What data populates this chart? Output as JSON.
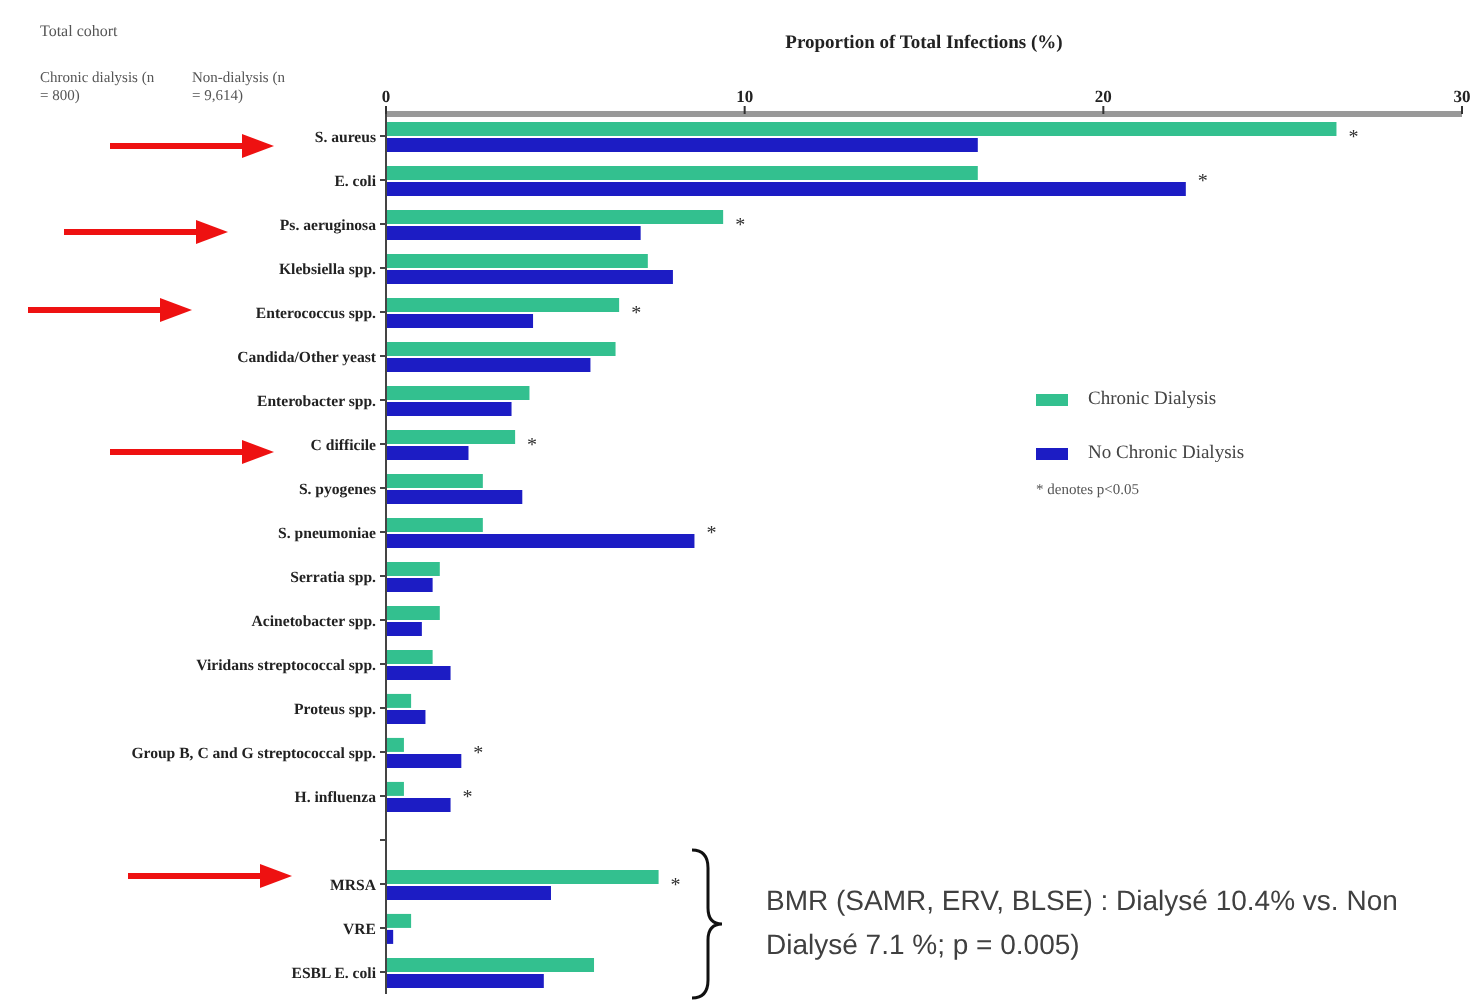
{
  "chart_data": {
    "type": "bar",
    "orientation": "horizontal",
    "xlabel": "Proportion of Total Infections (%)",
    "categories": [
      "S. aureus",
      "E. coli",
      "Ps. aeruginosa",
      "Klebsiella spp.",
      "Enterococcus spp.",
      "Candida/Other yeast",
      "Enterobacter spp.",
      "C difficile",
      "S. pyogenes",
      "S. pneumoniae",
      "Serratia spp.",
      "Acinetobacter spp.",
      "Viridans streptococcal spp.",
      "Proteus spp.",
      "Group B, C and G streptococcal spp.",
      "H. influenza",
      null,
      "MRSA",
      "VRE",
      "ESBL E. coli"
    ],
    "series": [
      {
        "name": "Chronic Dialysis",
        "color": "#33c08f",
        "values": [
          26.5,
          16.5,
          9.4,
          7.3,
          6.5,
          6.4,
          4.0,
          3.6,
          2.7,
          2.7,
          1.5,
          1.5,
          1.3,
          0.7,
          0.5,
          0.5,
          null,
          7.6,
          0.7,
          5.8
        ]
      },
      {
        "name": "No Chronic Dialysis",
        "color": "#1c1cc4",
        "values": [
          16.5,
          22.3,
          7.1,
          8.0,
          4.1,
          5.7,
          3.5,
          2.3,
          3.8,
          8.6,
          1.3,
          1.0,
          1.8,
          1.1,
          2.1,
          1.8,
          null,
          4.6,
          0.2,
          4.4
        ]
      }
    ],
    "xlim": [
      0,
      30
    ],
    "xticks": [
      0,
      10,
      20,
      30
    ],
    "legend": "right",
    "annotations": [
      {
        "text": "*",
        "x": 26.5,
        "y": "S. aureus"
      },
      {
        "text": "*",
        "x": 22.3,
        "y": "E. coli"
      },
      {
        "text": "*",
        "x": 9.4,
        "y": "Ps. aeruginosa"
      },
      {
        "text": "*",
        "x": 6.5,
        "y": "Enterococcus spp."
      },
      {
        "text": "*",
        "x": 3.6,
        "y": "C difficile"
      },
      {
        "text": "*",
        "x": 8.6,
        "y": "S. pneumoniae"
      },
      {
        "text": "*",
        "x": 2.1,
        "y": "Group B, C and G streptococcal spp."
      },
      {
        "text": "*",
        "x": 1.8,
        "y": "H. influenza"
      },
      {
        "text": "*",
        "x": 7.6,
        "y": "MRSA"
      },
      "Total cohort",
      "Chronic dialysis (n = 800)",
      "Non-dialysis (n = 9,614)",
      "* denotes p<0.05",
      "BMR (SAMR, ERV, BLSE) : Dialysé 10.4% vs. Non Dialysé 7.1 %; p = 0.005)"
    ]
  }
}
